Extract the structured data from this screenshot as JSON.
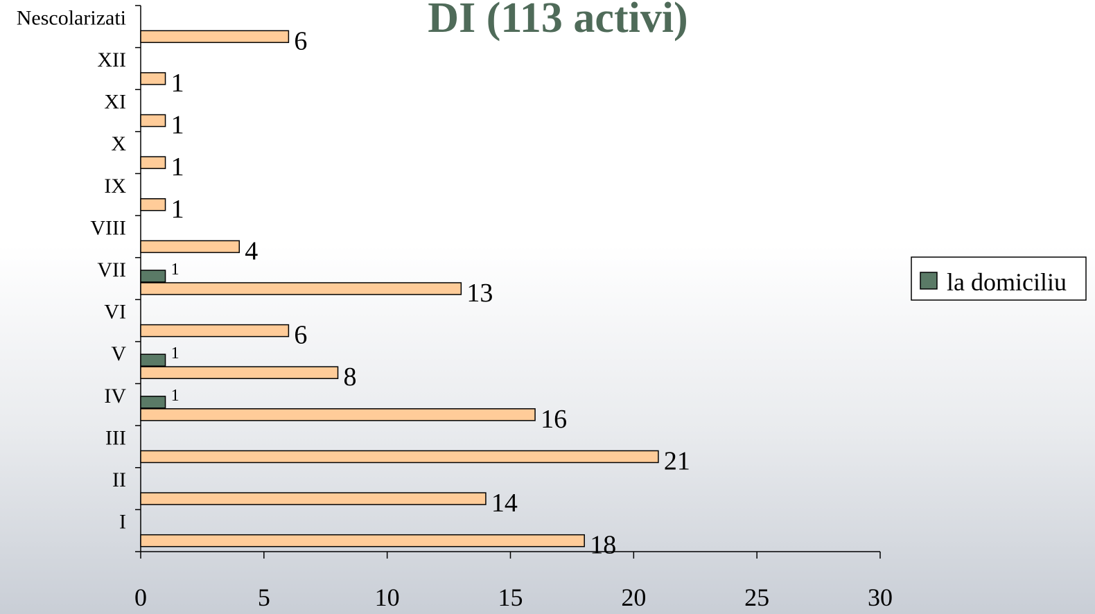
{
  "chart_data": {
    "type": "bar",
    "orientation": "horizontal",
    "title": "DI   (113 activi)",
    "categories": [
      "I",
      "II",
      "III",
      "IV",
      "V",
      "VI",
      "VII",
      "VIII",
      "IX",
      "X",
      "XI",
      "XII",
      "Nescolarizati"
    ],
    "series": [
      {
        "color": "#ffcc99",
        "values": [
          18,
          14,
          21,
          16,
          8,
          6,
          13,
          4,
          1,
          1,
          1,
          1,
          6
        ]
      },
      {
        "name": "la domiciliu",
        "color": "#5a7a66",
        "values": [
          null,
          null,
          null,
          1,
          1,
          null,
          1,
          null,
          null,
          null,
          null,
          null,
          null
        ]
      }
    ],
    "xlim": [
      0,
      30
    ],
    "xticks": [
      "0",
      "5",
      "10",
      "15",
      "20",
      "25",
      "30"
    ],
    "xlabel": "",
    "ylabel": "",
    "grid": false,
    "legend": "right"
  }
}
